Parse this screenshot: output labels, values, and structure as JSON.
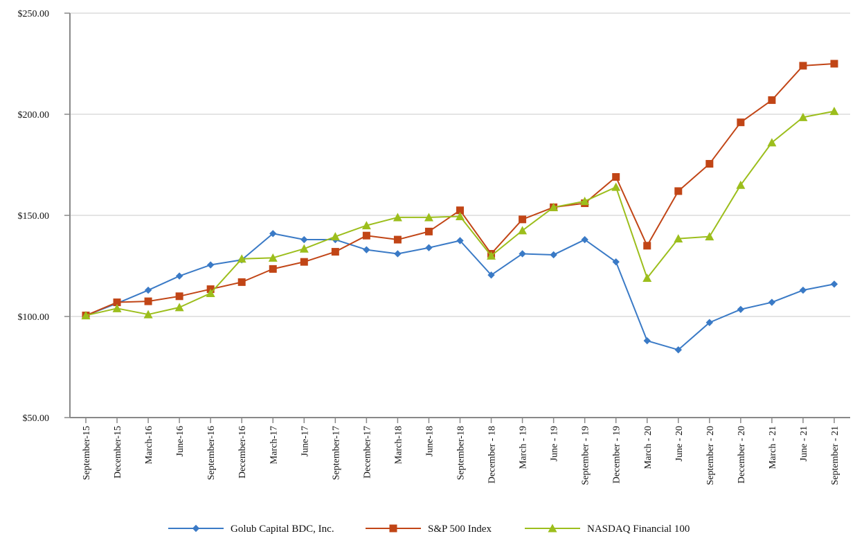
{
  "chart_data": {
    "type": "line",
    "title": "",
    "xlabel": "",
    "ylabel": "",
    "ylim": [
      50,
      250
    ],
    "y_ticks": [
      {
        "value": 50,
        "label": "$50.00"
      },
      {
        "value": 100,
        "label": "$100.00"
      },
      {
        "value": 150,
        "label": "$150.00"
      },
      {
        "value": 200,
        "label": "$200.00"
      },
      {
        "value": 250,
        "label": "$250.00"
      }
    ],
    "grid": true,
    "legend_position": "bottom",
    "categories": [
      "September-15",
      "December-15",
      "March-16",
      "June-16",
      "September-16",
      "December-16",
      "March-17",
      "June-17",
      "September-17",
      "December-17",
      "March-18",
      "June-18",
      "September-18",
      "December - 18",
      "March - 19",
      "June - 19",
      "September - 19",
      "December - 19",
      "March - 20",
      "June - 20",
      "September - 20",
      "December - 20",
      "March - 21",
      "June - 21",
      "September - 21"
    ],
    "series": [
      {
        "name": "Golub Capital BDC, Inc.",
        "color": "#3a7ac6",
        "marker": "diamond",
        "values": [
          100.5,
          106.5,
          113,
          120,
          125.5,
          128,
          141,
          138,
          138,
          133,
          131,
          134,
          137.5,
          120.5,
          131,
          130.5,
          138,
          127,
          88,
          83.5,
          97,
          103.5,
          107,
          113,
          116
        ]
      },
      {
        "name": "S&P 500 Index",
        "color": "#c14516",
        "marker": "square",
        "values": [
          100.5,
          107,
          107.5,
          110,
          113.5,
          117,
          123.5,
          127,
          132,
          140,
          138,
          142,
          152.5,
          131,
          148,
          154,
          156,
          169,
          135,
          162,
          175.5,
          196,
          207,
          224,
          225
        ]
      },
      {
        "name": "NASDAQ Financial 100",
        "color": "#9cbe1c",
        "marker": "triangle",
        "values": [
          100.5,
          104,
          101,
          104.5,
          111.5,
          128.5,
          129,
          133.5,
          139.5,
          145,
          149,
          149,
          149.5,
          130,
          142.5,
          154,
          157,
          164,
          119,
          138.5,
          139.5,
          165,
          186,
          198.5,
          201.5
        ]
      }
    ]
  }
}
